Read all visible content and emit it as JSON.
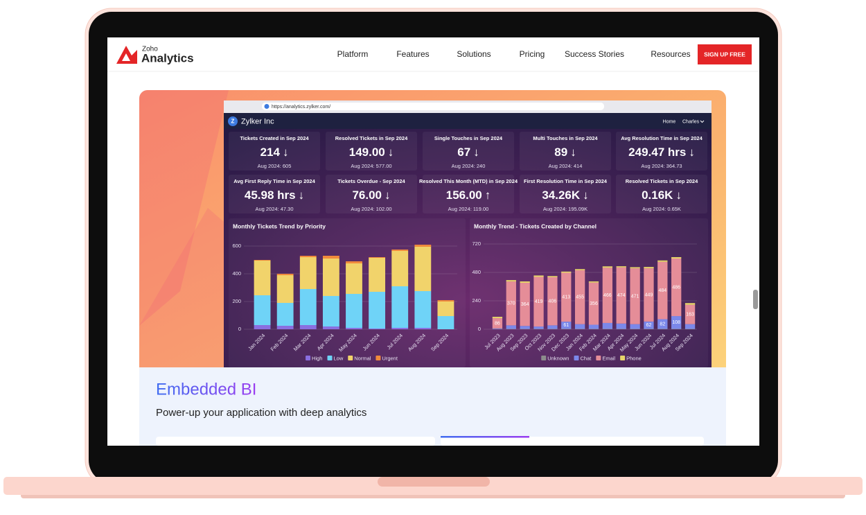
{
  "nav": {
    "logo_top": "Zoho",
    "logo_bottom": "Analytics",
    "items": [
      "Platform",
      "Features",
      "Solutions",
      "Pricing",
      "Success Stories",
      "Resources"
    ],
    "cta": "SIGN UP FREE"
  },
  "browser": {
    "url": "https://analytics.zylker.com/"
  },
  "dashboard": {
    "app_icon": "Z",
    "app_name": "Zylker Inc",
    "menu": [
      "Home",
      "Charles"
    ],
    "kpis": [
      {
        "title": "Tickets Created in Sep 2024",
        "value": "214",
        "trend": "↓",
        "previous": "Aug 2024: 605"
      },
      {
        "title": "Resolved Tickets in Sep 2024",
        "value": "149.00",
        "trend": "↓",
        "previous": "Aug 2024: 577.00"
      },
      {
        "title": "Single Touches in Sep 2024",
        "value": "67",
        "trend": "↓",
        "previous": "Aug 2024: 240"
      },
      {
        "title": "Multi Touches in Sep 2024",
        "value": "89",
        "trend": "↓",
        "previous": "Aug 2024: 414"
      },
      {
        "title": "Avg Resolution Time in Sep 2024",
        "value": "249.47 hrs",
        "trend": "↓",
        "previous": "Aug 2024: 364.73"
      },
      {
        "title": "Avg First Reply Time in Sep 2024",
        "value": "45.98 hrs",
        "trend": "↓",
        "previous": "Aug 2024: 47.30"
      },
      {
        "title": "Tickets Overdue - Sep 2024",
        "value": "76.00",
        "trend": "↓",
        "previous": "Aug 2024: 102.00"
      },
      {
        "title": "Resolved This Month (MTD) in Sep 2024",
        "value": "156.00",
        "trend": "↑",
        "previous": "Aug 2024: 119.00"
      },
      {
        "title": "First Resolution Time in Sep 2024",
        "value": "34.26K",
        "trend": "↓",
        "previous": "Aug 2024: 195.09K"
      },
      {
        "title": "Resolved Tickets in Sep 2024",
        "value": "0.16K",
        "trend": "↓",
        "previous": "Aug 2024: 0.65K"
      }
    ],
    "charts": [
      {
        "type": "bar",
        "stacked": true,
        "title": "Monthly Tickets Trend by Priority",
        "data_labels": false,
        "categories": [
          "Jan 2024",
          "Feb 2024",
          "Mar 2024",
          "Apr 2024",
          "May 2024",
          "Jun 2024",
          "Jul 2024",
          "Aug 2024",
          "Sep 2024"
        ],
        "series": [
          {
            "name": "High",
            "color": "#8a6fe0",
            "values": [
              30,
              25,
              30,
              20,
              10,
              5,
              10,
              10,
              0
            ]
          },
          {
            "name": "Low",
            "color": "#6fd3f7",
            "values": [
              215,
              165,
              260,
              220,
              245,
              265,
              300,
              265,
              95
            ]
          },
          {
            "name": "Normal",
            "color": "#f1d36b",
            "values": [
              250,
              200,
              230,
              270,
              220,
              245,
              255,
              320,
              105
            ]
          },
          {
            "name": "Urgent",
            "color": "#f08a3c",
            "values": [
              5,
              10,
              10,
              20,
              15,
              5,
              10,
              15,
              10
            ]
          }
        ],
        "ylim": [
          0,
          600
        ],
        "yticks": [
          0,
          200,
          400,
          600
        ],
        "grid": true
      },
      {
        "type": "bar",
        "stacked": true,
        "title": "Monthly Trend - Tickets Created by Channel",
        "data_labels": true,
        "categories": [
          "Jul 2023",
          "Aug 2023",
          "Sep 2023",
          "Oct 2023",
          "Nov 2023",
          "Dec 2023",
          "Jan 2024",
          "Feb 2024",
          "Mar 2024",
          "Apr 2024",
          "May 2024",
          "Jun 2024",
          "Jul 2024",
          "Aug 2024",
          "Sep 2024"
        ],
        "series": [
          {
            "name": "Unknown",
            "color": "#8c8c8c",
            "values": [
              2,
              3,
              3,
              3,
              3,
              3,
              3,
              3,
              3,
              3,
              3,
              3,
              3,
              3,
              3
            ]
          },
          {
            "name": "Chat",
            "color": "#7b88ea",
            "values": [
              5,
              30,
              25,
              20,
              30,
              61,
              40,
              35,
              50,
              45,
              40,
              62,
              82,
              108,
              40
            ]
          },
          {
            "name": "Email",
            "color": "#e58d98",
            "values": [
              86,
              370,
              364,
              419,
              406,
              413,
              455,
              356,
              466,
              474,
              471,
              449,
              484,
              486,
              163
            ]
          },
          {
            "name": "Phone",
            "color": "#e6d46a",
            "values": [
              12,
              12,
              12,
              12,
              10,
              10,
              10,
              10,
              12,
              10,
              10,
              12,
              12,
              12,
              15
            ]
          }
        ],
        "ylim": [
          0,
          720
        ],
        "yticks": [
          0,
          240,
          480,
          720
        ],
        "grid": true
      }
    ]
  },
  "section": {
    "title": "Embedded BI",
    "subtitle": "Power-up your application with deep analytics"
  }
}
